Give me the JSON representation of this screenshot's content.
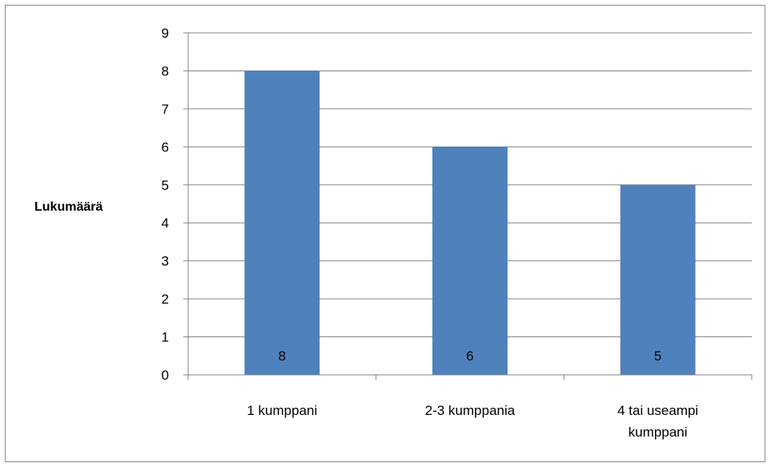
{
  "chart_data": {
    "type": "bar",
    "categories": [
      [
        "1 kumppani"
      ],
      [
        "2-3 kumppania"
      ],
      [
        "4 tai useampi",
        "kumppani"
      ]
    ],
    "values": [
      8,
      6,
      5
    ],
    "data_labels": [
      "8",
      "6",
      "5"
    ],
    "title": "",
    "xlabel": "",
    "ylabel": "Lukumäärä",
    "ylim": [
      0,
      9
    ],
    "yticks": [
      0,
      1,
      2,
      3,
      4,
      5,
      6,
      7,
      8,
      9
    ],
    "grid": true,
    "legend": "none",
    "bar_color": "#4f81bd",
    "gridline_color": "#868686"
  }
}
